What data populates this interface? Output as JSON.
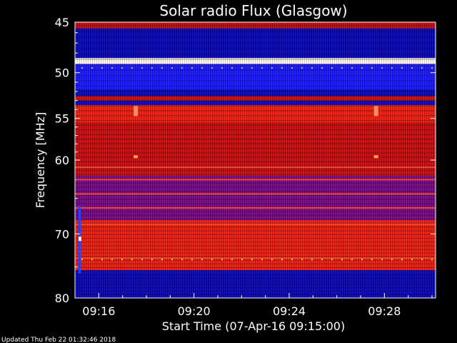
{
  "chart_data": {
    "type": "heatmap",
    "title": "Solar radio Flux (Glasgow)",
    "ylabel": "Frequency [MHz]",
    "xlabel": "Start Time (07-Apr-16 09:15:00)",
    "footer": "Updated Thu Feb 22 01:32:46 2018",
    "y_scale": "log",
    "ylim": [
      45,
      80
    ],
    "y_ticks": [
      {
        "value": 45,
        "label": "45"
      },
      {
        "value": 50,
        "label": "50"
      },
      {
        "value": 55,
        "label": "55"
      },
      {
        "value": 60,
        "label": "60"
      },
      {
        "value": 70,
        "label": "70"
      },
      {
        "value": 80,
        "label": "80"
      }
    ],
    "xlim_minutes": [
      15.0,
      30.15
    ],
    "x_ticks": [
      {
        "value": 16,
        "label": "09:16"
      },
      {
        "value": 20,
        "label": "09:20"
      },
      {
        "value": 24,
        "label": "09:24"
      },
      {
        "value": 28,
        "label": "09:28"
      }
    ],
    "colors": {
      "background": "#000000",
      "low": "#0000ff",
      "mid": "#cc0000",
      "high": "#ffffff"
    },
    "frequency_bands": [
      {
        "from": 45,
        "to": 45.6,
        "level": "mid-red"
      },
      {
        "from": 45.6,
        "to": 48.5,
        "level": "dark-blue"
      },
      {
        "from": 48.5,
        "to": 49.1,
        "level": "white"
      },
      {
        "from": 49.1,
        "to": 51.8,
        "level": "blue"
      },
      {
        "from": 51.8,
        "to": 52.5,
        "level": "dark-blue"
      },
      {
        "from": 52.5,
        "to": 53.0,
        "level": "red"
      },
      {
        "from": 53.0,
        "to": 53.5,
        "level": "dark-blue"
      },
      {
        "from": 53.5,
        "to": 55.5,
        "level": "bright-red"
      },
      {
        "from": 55.5,
        "to": 62.0,
        "level": "red"
      },
      {
        "from": 62.0,
        "to": 68.0,
        "level": "purple"
      },
      {
        "from": 68.0,
        "to": 75.5,
        "level": "bright-red"
      },
      {
        "from": 75.5,
        "to": 80.0,
        "level": "dark-blue"
      }
    ]
  }
}
